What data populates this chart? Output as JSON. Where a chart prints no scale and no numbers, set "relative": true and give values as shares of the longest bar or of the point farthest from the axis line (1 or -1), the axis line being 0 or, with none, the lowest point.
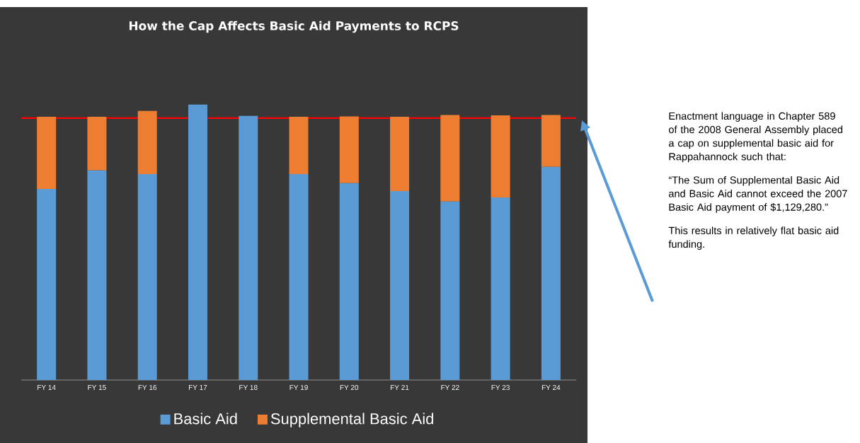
{
  "chart_data": {
    "type": "bar",
    "stacked": true,
    "relative": true,
    "title": "How the Cap Affects Basic Aid Payments to RCPS",
    "categories": [
      "FY 14",
      "FY 15",
      "FY 16",
      "FY 17",
      "FY 18",
      "FY 19",
      "FY 20",
      "FY 21",
      "FY 22",
      "FY 23",
      "FY 24"
    ],
    "series": [
      {
        "name": "Basic Aid",
        "color": "#5b9bd5",
        "values": [
          0.694,
          0.761,
          0.748,
          1,
          0.959,
          0.748,
          0.715,
          0.686,
          0.648,
          0.663,
          0.774
        ]
      },
      {
        "name": "Supplemental Basic Aid",
        "color": "#ed7d31",
        "values": [
          0.262,
          0.195,
          0.229,
          0,
          0,
          0.208,
          0.242,
          0.27,
          0.314,
          0.298,
          0.188
        ]
      }
    ],
    "ref_lines": [
      {
        "axis": "y",
        "value": 0.951,
        "color": "#ff0000"
      }
    ],
    "legend": "bottom",
    "annotations": [
      "Enactment language in Chapter 589 of the 2008 General Assembly placed a cap on supplemental basic aid for Rappahannock such that:",
      "“The Sum of Supplemental Basic Aid and Basic Aid cannot exceed the 2007 Basic Aid payment of $1,129,280.”",
      "This results in relatively flat basic aid funding."
    ]
  }
}
